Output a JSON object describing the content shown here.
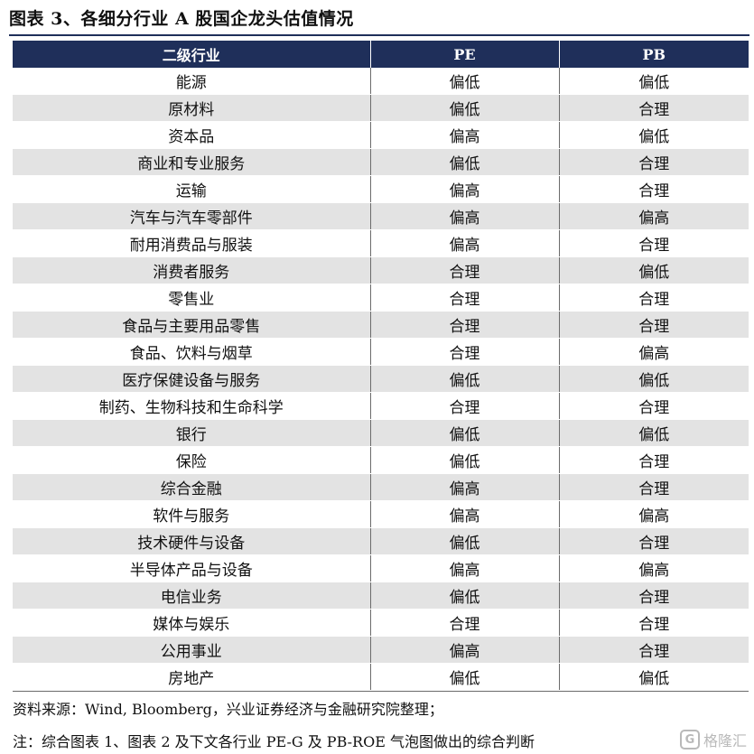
{
  "title": "图表 3、各细分行业 A 股国企龙头估值情况",
  "table": {
    "headers": [
      "二级行业",
      "PE",
      "PB"
    ],
    "rows": [
      [
        "能源",
        "偏低",
        "偏低"
      ],
      [
        "原材料",
        "偏低",
        "合理"
      ],
      [
        "资本品",
        "偏高",
        "偏低"
      ],
      [
        "商业和专业服务",
        "偏低",
        "合理"
      ],
      [
        "运输",
        "偏高",
        "合理"
      ],
      [
        "汽车与汽车零部件",
        "偏高",
        "偏高"
      ],
      [
        "耐用消费品与服装",
        "偏高",
        "合理"
      ],
      [
        "消费者服务",
        "合理",
        "偏低"
      ],
      [
        "零售业",
        "合理",
        "合理"
      ],
      [
        "食品与主要用品零售",
        "合理",
        "合理"
      ],
      [
        "食品、饮料与烟草",
        "合理",
        "偏高"
      ],
      [
        "医疗保健设备与服务",
        "偏低",
        "偏低"
      ],
      [
        "制药、生物科技和生命科学",
        "合理",
        "合理"
      ],
      [
        "银行",
        "偏低",
        "偏低"
      ],
      [
        "保险",
        "偏低",
        "合理"
      ],
      [
        "综合金融",
        "偏高",
        "合理"
      ],
      [
        "软件与服务",
        "偏高",
        "偏高"
      ],
      [
        "技术硬件与设备",
        "偏低",
        "合理"
      ],
      [
        "半导体产品与设备",
        "偏高",
        "偏高"
      ],
      [
        "电信业务",
        "偏低",
        "合理"
      ],
      [
        "媒体与娱乐",
        "合理",
        "合理"
      ],
      [
        "公用事业",
        "偏高",
        "合理"
      ],
      [
        "房地产",
        "偏低",
        "偏低"
      ]
    ]
  },
  "source": "资料来源：Wind, Bloomberg，兴业证券经济与金融研究院整理；",
  "note": "注：综合图表 1、图表 2 及下文各行业 PE-G 及 PB-ROE 气泡图做出的综合判断",
  "watermark": {
    "logo_text": "G",
    "text": "格隆汇"
  }
}
